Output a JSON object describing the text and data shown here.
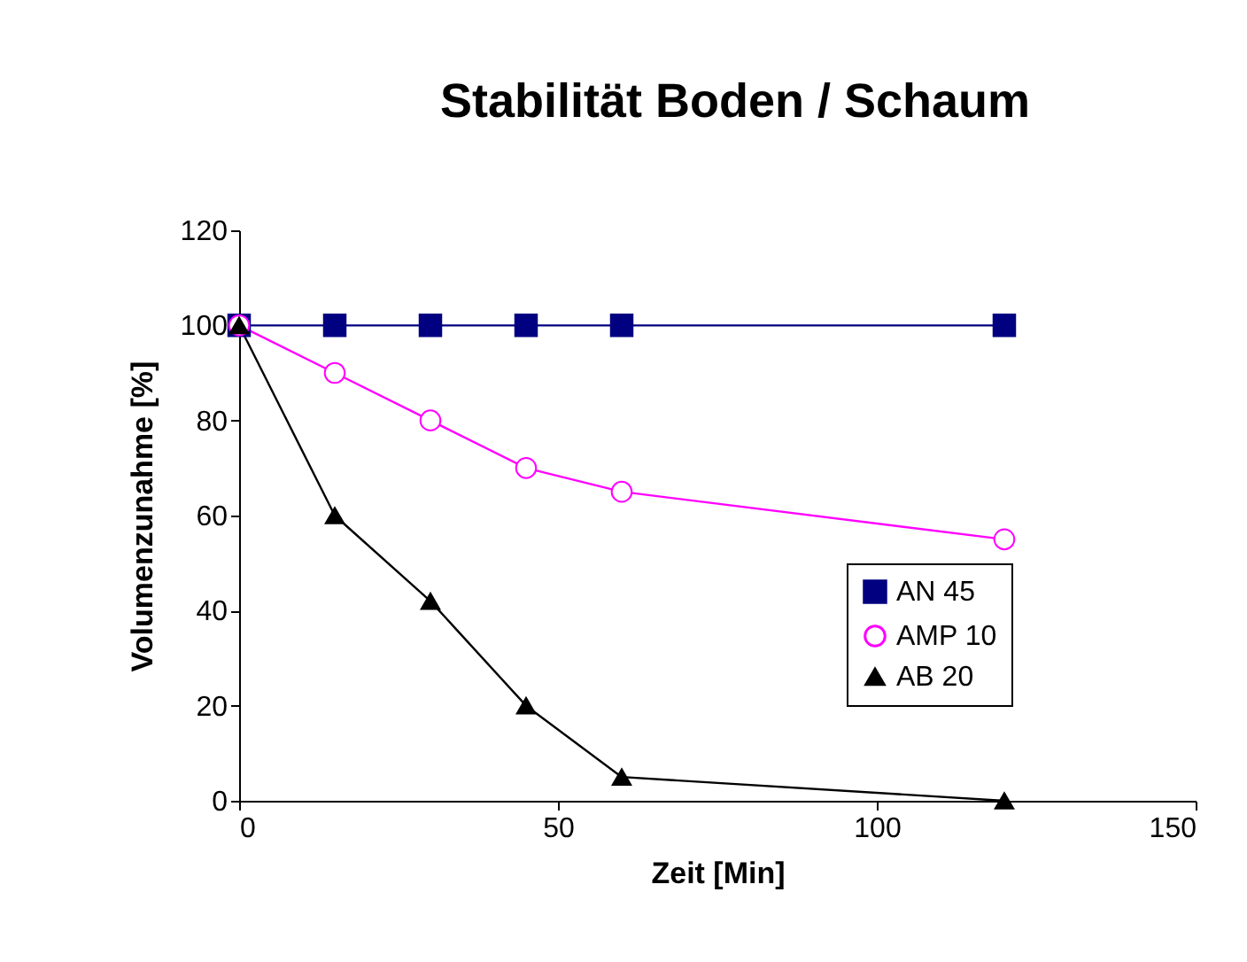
{
  "chart_data": {
    "type": "line",
    "title": "Stabilität Boden / Schaum",
    "xlabel": "Zeit [Min]",
    "ylabel": "Volumenzunahme [%]",
    "x": [
      0,
      15,
      30,
      45,
      60,
      120
    ],
    "series": [
      {
        "name": "AN 45",
        "color": "#000080",
        "marker": "square",
        "values": [
          100,
          100,
          100,
          100,
          100,
          100
        ]
      },
      {
        "name": "AMP 10",
        "color": "#ff00ff",
        "marker": "circle",
        "values": [
          100,
          90,
          80,
          70,
          65,
          55
        ]
      },
      {
        "name": "AB 20",
        "color": "#000000",
        "marker": "triangle",
        "values": [
          100,
          60,
          42,
          20,
          5,
          0
        ]
      }
    ],
    "xlim": [
      0,
      150
    ],
    "xticks": [
      0,
      50,
      100,
      150
    ],
    "ylim": [
      0,
      120
    ],
    "yticks": [
      0,
      20,
      40,
      60,
      80,
      100,
      120
    ],
    "grid": false,
    "legend": "right",
    "line_style": "solid"
  }
}
